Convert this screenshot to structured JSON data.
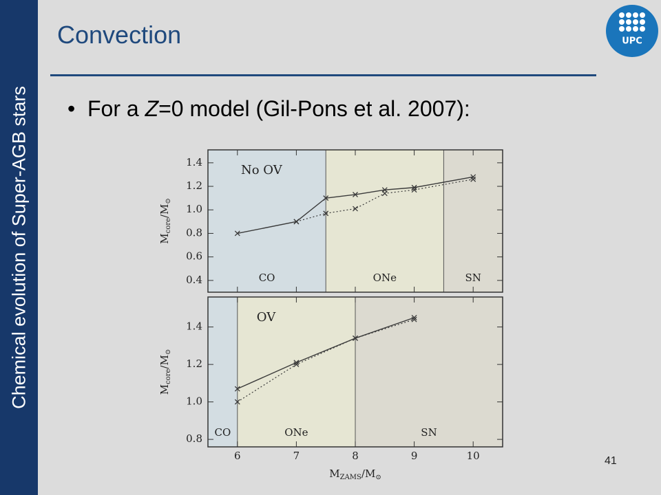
{
  "sidebar": "Chemical evolution of Super-AGB stars",
  "title": "Convection",
  "bullet": {
    "before": "For a ",
    "italic": "Z",
    "after": "=0 model (Gil-Pons et al. 2007):"
  },
  "logo": "UPC",
  "page_number": "41",
  "chart_data": [
    {
      "type": "line",
      "annotation": "No OV",
      "ylabel": {
        "base": "M",
        "sub": "core",
        "rest": "/M",
        "sun": "⊙"
      },
      "xlim": [
        5.5,
        10.5
      ],
      "xticks": [
        6,
        7,
        8,
        9,
        10
      ],
      "ylim": [
        0.3,
        1.51
      ],
      "yticks": [
        0.4,
        0.6,
        0.8,
        {
          "value": 1.0,
          "label": "1.0"
        },
        1.2,
        1.4
      ],
      "regions": [
        {
          "label": "CO",
          "from": 5.5,
          "to": 7.5,
          "color": "#d3dde2"
        },
        {
          "label": "ONe",
          "from": 7.5,
          "to": 9.5,
          "color": "#e6e6d3"
        },
        {
          "label": "SN",
          "from": 9.5,
          "to": 10.5,
          "color": "#dcdad0"
        }
      ],
      "series": [
        {
          "style": "solid",
          "color": "#3a3a3a",
          "x": [
            6,
            7,
            7.5,
            8,
            8.5,
            9,
            10
          ],
          "y": [
            0.8,
            0.9,
            1.1,
            1.13,
            1.17,
            1.19,
            1.28
          ]
        },
        {
          "style": "dotted",
          "color": "#3a3a3a",
          "x": [
            7,
            7.5,
            8,
            8.5,
            9,
            10
          ],
          "y": [
            0.9,
            0.97,
            1.01,
            1.14,
            1.17,
            1.26
          ]
        }
      ]
    },
    {
      "type": "line",
      "annotation": "OV",
      "ylabel": {
        "base": "M",
        "sub": "core",
        "rest": "/M",
        "sun": "⊙"
      },
      "xlabel": {
        "base": "M",
        "sub": "ZAMS",
        "rest": "/M",
        "sun": "⊙"
      },
      "xlim": [
        5.5,
        10.5
      ],
      "xticks": [
        6,
        7,
        8,
        9,
        10
      ],
      "ylim": [
        0.76,
        1.56
      ],
      "yticks": [
        0.8,
        {
          "value": 1.0,
          "label": "1.0"
        },
        1.2,
        1.4
      ],
      "regions": [
        {
          "label": "CO",
          "from": 5.5,
          "to": 6,
          "color": "#d3dde2"
        },
        {
          "label": "ONe",
          "from": 6,
          "to": 8,
          "color": "#e6e6d3"
        },
        {
          "label": "SN",
          "from": 8,
          "to": 10.5,
          "color": "#dcdad0"
        }
      ],
      "series": [
        {
          "style": "solid",
          "color": "#3a3a3a",
          "x": [
            6,
            7,
            8,
            9
          ],
          "y": [
            1.07,
            1.21,
            1.34,
            1.45
          ]
        },
        {
          "style": "dotted",
          "color": "#3a3a3a",
          "x": [
            6,
            7,
            8,
            9
          ],
          "y": [
            1.0,
            1.2,
            1.34,
            1.44
          ]
        }
      ]
    }
  ]
}
